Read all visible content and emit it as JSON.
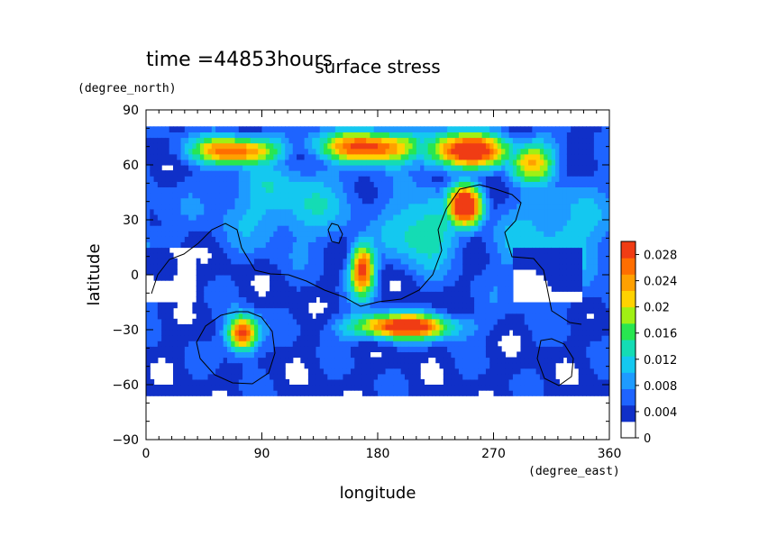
{
  "chart_data": {
    "type": "heatmap",
    "title": "surface stress",
    "time_label": "time =44853hours",
    "xlabel": "longitude",
    "ylabel": "latitude",
    "xunit": "(degree_east)",
    "yunit": "(degree_north)",
    "xlim": [
      0,
      360
    ],
    "ylim": [
      -90,
      90
    ],
    "xticks": [
      0,
      90,
      180,
      270,
      360
    ],
    "yticks": [
      90,
      60,
      30,
      0,
      -30,
      -60,
      -90
    ],
    "colorbar": {
      "min": 0,
      "max": 0.03,
      "ticks": [
        "0.028",
        "0.024",
        "0.02",
        "0.016",
        "0.012",
        "0.008",
        "0.004",
        "0"
      ],
      "tick_values": [
        0.028,
        0.024,
        0.02,
        0.016,
        0.012,
        0.008,
        0.004,
        0
      ],
      "colors": [
        "#ffffff",
        "#1030c8",
        "#1e64ff",
        "#1e9bff",
        "#14c8f0",
        "#14dcb4",
        "#28e650",
        "#a0f014",
        "#ffd200",
        "#ffa000",
        "#ff6e00",
        "#f03c14"
      ]
    },
    "features": [
      {
        "name": "northern storm track west",
        "lon": 70,
        "lat": 68,
        "value": 0.024
      },
      {
        "name": "northern storm track central",
        "lon": 175,
        "lat": 70,
        "value": 0.026
      },
      {
        "name": "northern storm track east",
        "lon": 250,
        "lat": 68,
        "value": 0.028
      },
      {
        "name": "peak east",
        "lon": 248,
        "lat": 38,
        "value": 0.03
      },
      {
        "name": "equatorial jet",
        "lon": 168,
        "lat": 3,
        "value": 0.026
      },
      {
        "name": "southern band",
        "lon": 200,
        "lat": -28,
        "value": 0.028
      },
      {
        "name": "southern peak west",
        "lon": 75,
        "lat": -32,
        "value": 0.028
      }
    ]
  }
}
